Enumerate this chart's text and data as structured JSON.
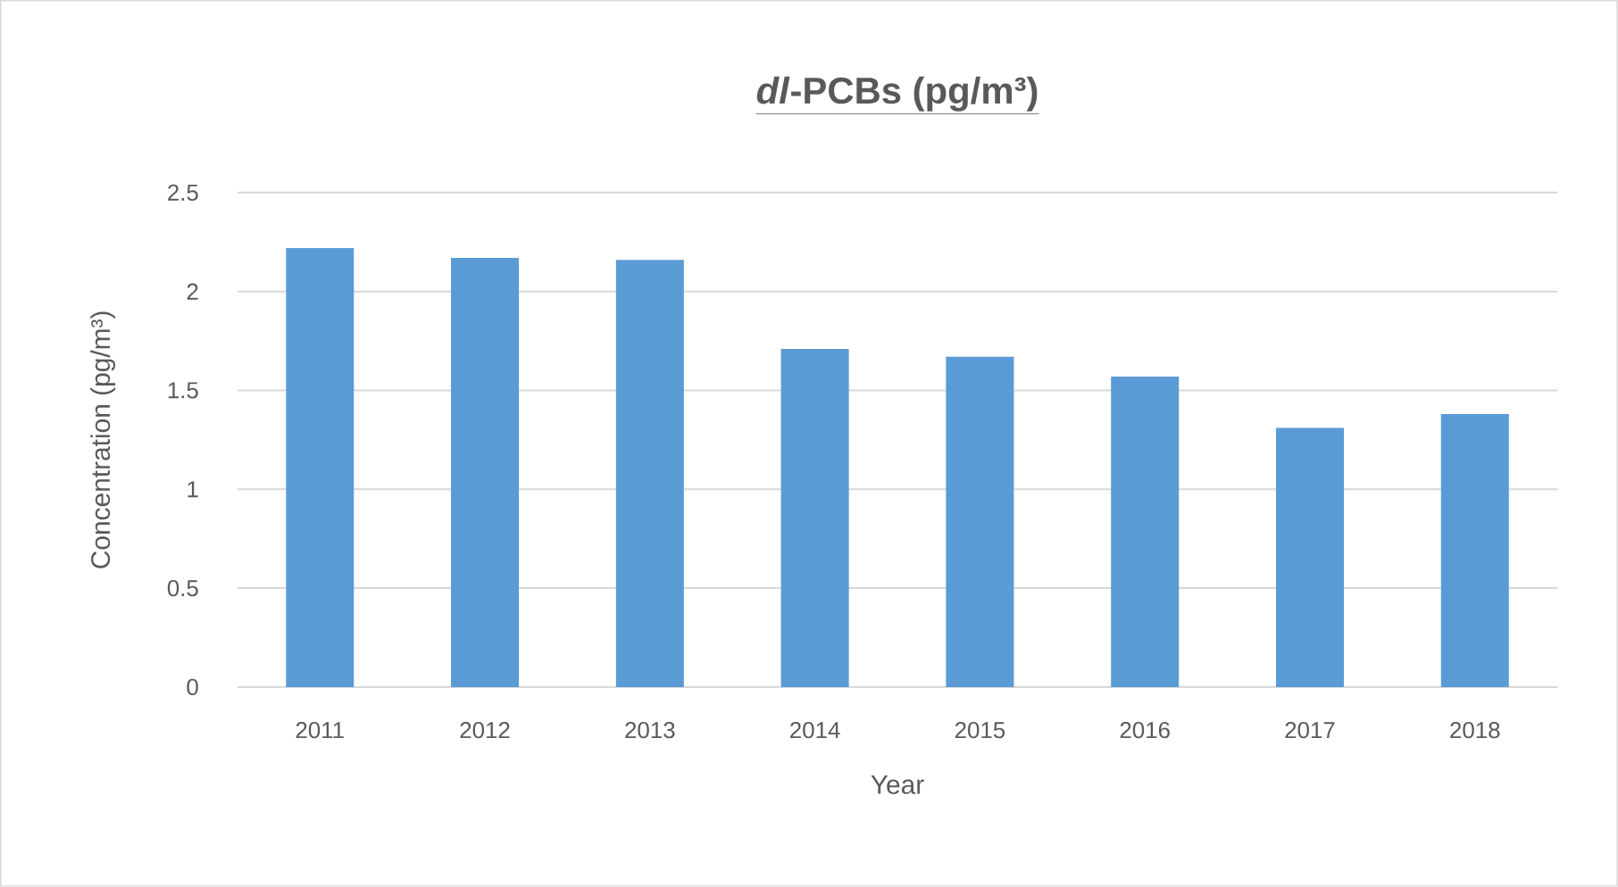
{
  "chart_data": {
    "type": "bar",
    "title": "*dl*-PCBs (pg/m³)",
    "xlabel": "Year",
    "ylabel": "Concentration (pg/m³)",
    "categories": [
      "2011",
      "2012",
      "2013",
      "2014",
      "2015",
      "2016",
      "2017",
      "2018"
    ],
    "values": [
      2.22,
      2.17,
      2.16,
      1.71,
      1.67,
      1.57,
      1.31,
      1.38
    ],
    "color": "#5b9bd5",
    "ylim": [
      0,
      2.5
    ],
    "yticks": [
      0,
      0.5,
      1,
      1.5,
      2,
      2.5
    ],
    "grid": "y"
  }
}
